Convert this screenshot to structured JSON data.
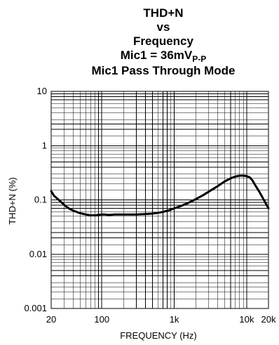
{
  "chart_data": {
    "type": "line",
    "title_lines": [
      "THD+N",
      "vs",
      "Frequency"
    ],
    "title_mic_prefix": "Mic1 = 36mV",
    "title_mic_subscript": "P-P",
    "title_mode": "Mic1 Pass Through Mode",
    "xlabel": "FREQUENCY (Hz)",
    "ylabel": "THD+N (%)",
    "x_scale": "log",
    "y_scale": "log",
    "xlim": [
      20,
      20000
    ],
    "ylim": [
      0.001,
      10
    ],
    "grid": true,
    "x_ticks": [
      {
        "value": 20,
        "label": "20"
      },
      {
        "value": 100,
        "label": "100"
      },
      {
        "value": 1000,
        "label": "1k"
      },
      {
        "value": 10000,
        "label": "10k"
      },
      {
        "value": 20000,
        "label": "20k"
      }
    ],
    "y_ticks": [
      {
        "value": 10,
        "label": "10"
      },
      {
        "value": 1,
        "label": "1"
      },
      {
        "value": 0.1,
        "label": "0.1"
      },
      {
        "value": 0.01,
        "label": "0.01"
      },
      {
        "value": 0.001,
        "label": "0.001"
      }
    ],
    "series": [
      {
        "color": "#000000",
        "x": [
          20,
          22,
          25,
          28,
          32,
          36,
          40,
          45,
          50,
          60,
          70,
          80,
          90,
          100,
          110,
          120,
          130,
          150,
          170,
          200,
          250,
          300,
          400,
          500,
          600,
          700,
          800,
          900,
          1000,
          1200,
          1500,
          2000,
          2500,
          3000,
          4000,
          5000,
          6000,
          7000,
          8000,
          9000,
          10000,
          11000,
          12000,
          13000,
          15000,
          17000,
          20000
        ],
        "y": [
          0.145,
          0.118,
          0.102,
          0.089,
          0.076,
          0.068,
          0.064,
          0.06,
          0.057,
          0.054,
          0.052,
          0.052,
          0.053,
          0.054,
          0.054,
          0.053,
          0.053,
          0.054,
          0.054,
          0.054,
          0.054,
          0.054,
          0.055,
          0.056,
          0.058,
          0.06,
          0.063,
          0.066,
          0.07,
          0.076,
          0.086,
          0.104,
          0.122,
          0.142,
          0.18,
          0.22,
          0.25,
          0.27,
          0.28,
          0.28,
          0.275,
          0.26,
          0.23,
          0.19,
          0.14,
          0.104,
          0.07
        ]
      }
    ]
  }
}
